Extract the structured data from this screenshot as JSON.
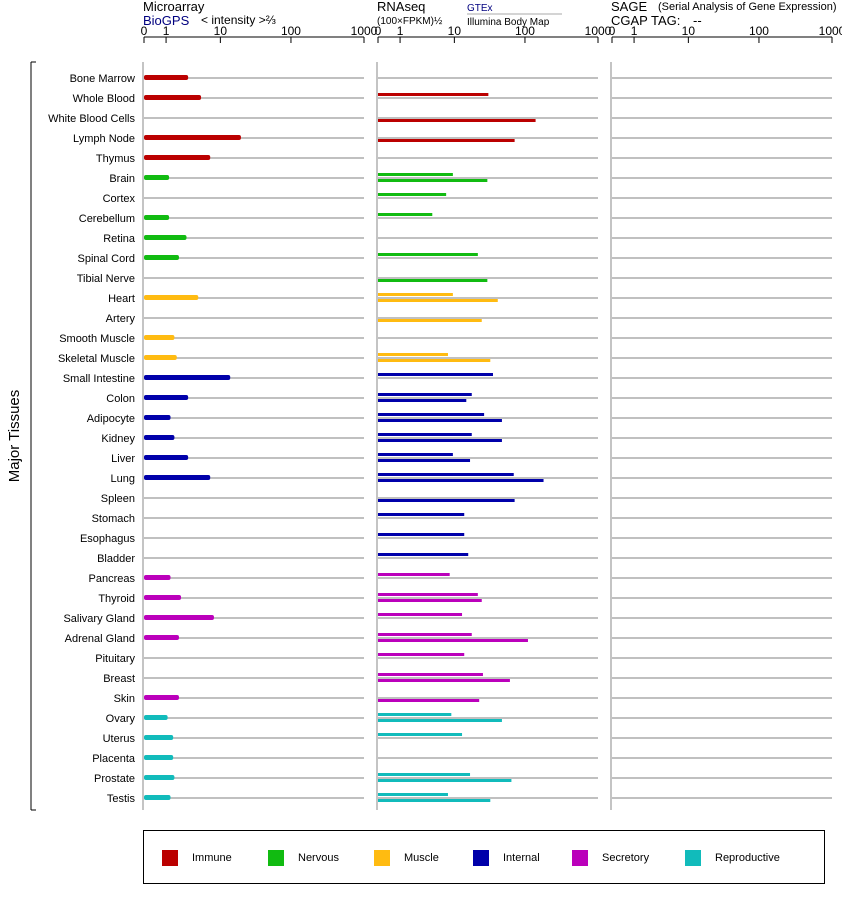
{
  "header": {
    "microarray_title": "Microarray",
    "microarray_source": "BioGPS",
    "microarray_unit": "< intensity >⅔",
    "rnaseq_title": "RNAseq",
    "rnaseq_unit": "(100×FPKM)½",
    "rnaseq_source1": "GTEx",
    "rnaseq_source2": "Illumina Body Map",
    "sage_title": "SAGE",
    "sage_subtitle": "(Serial Analysis of Gene Expression)",
    "sage_tag_label": "CGAP TAG:",
    "sage_tag_value": "--"
  },
  "colors": {
    "Immune": "#bb0000",
    "Nervous": "#11bb11",
    "Muscle": "#ffbb11",
    "Internal": "#0000aa",
    "Secretory": "#bb00bb",
    "Reproductive": "#11bbbb"
  },
  "chart_data": {
    "type": "bar",
    "ylabel": "Major Tissues",
    "axis_ticks": [
      "0",
      "1",
      "10",
      "100",
      "1000"
    ],
    "xlim": [
      0,
      1000
    ],
    "grid": true,
    "legend": [
      "Immune",
      "Nervous",
      "Muscle",
      "Internal",
      "Secretory",
      "Reproductive"
    ],
    "legend_position": "bottom",
    "categories": [
      "Bone Marrow",
      "Whole Blood",
      "White Blood Cells",
      "Lymph Node",
      "Thymus",
      "Brain",
      "Cortex",
      "Cerebellum",
      "Retina",
      "Spinal Cord",
      "Tibial Nerve",
      "Heart",
      "Artery",
      "Smooth Muscle",
      "Skeletal Muscle",
      "Small Intestine",
      "Colon",
      "Adipocyte",
      "Kidney",
      "Liver",
      "Lung",
      "Spleen",
      "Stomach",
      "Esophagus",
      "Bladder",
      "Pancreas",
      "Thyroid",
      "Salivary Gland",
      "Adrenal Gland",
      "Pituitary",
      "Breast",
      "Skin",
      "Ovary",
      "Uterus",
      "Placenta",
      "Prostate",
      "Testis"
    ],
    "groups": [
      "Immune",
      "Immune",
      "Immune",
      "Immune",
      "Immune",
      "Nervous",
      "Nervous",
      "Nervous",
      "Nervous",
      "Nervous",
      "Nervous",
      "Muscle",
      "Muscle",
      "Muscle",
      "Muscle",
      "Internal",
      "Internal",
      "Internal",
      "Internal",
      "Internal",
      "Internal",
      "Internal",
      "Internal",
      "Internal",
      "Internal",
      "Secretory",
      "Secretory",
      "Secretory",
      "Secretory",
      "Secretory",
      "Secretory",
      "Secretory",
      "Reproductive",
      "Reproductive",
      "Reproductive",
      "Reproductive",
      "Reproductive"
    ],
    "series": [
      {
        "name": "Microarray",
        "values": [
          3,
          5,
          0,
          20,
          7,
          1.2,
          0,
          1.2,
          2.8,
          2,
          0,
          4.5,
          0,
          1.6,
          1.8,
          14,
          3,
          1.3,
          1.6,
          3,
          7,
          0,
          0,
          0,
          0,
          1.3,
          2.2,
          8,
          2,
          0,
          0,
          2,
          1.1,
          1.5,
          1.5,
          1.6,
          1.3
        ]
      },
      {
        "name": "GTEx",
        "values": [
          0,
          31,
          0,
          0,
          0,
          9.5,
          7.5,
          4.5,
          0,
          22,
          0,
          9.5,
          0,
          0,
          8,
          36,
          18,
          27,
          18,
          9.5,
          70,
          0,
          14,
          14,
          16,
          8.5,
          22,
          13,
          18,
          14,
          26,
          0,
          9,
          13,
          0,
          17,
          8
        ]
      },
      {
        "name": "Illumina Body Map",
        "values": [
          0,
          0,
          140,
          72,
          0,
          30,
          0,
          0,
          0,
          0,
          30,
          42,
          25,
          0,
          33,
          0,
          15,
          48,
          48,
          17,
          180,
          72,
          0,
          0,
          0,
          0,
          25,
          0,
          110,
          0,
          62,
          23,
          48,
          0,
          0,
          65,
          33
        ]
      },
      {
        "name": "SAGE",
        "values": [
          0,
          0,
          0,
          0,
          0,
          0,
          0,
          0,
          0,
          0,
          0,
          0,
          0,
          0,
          0,
          0,
          0,
          0,
          0,
          0,
          0,
          0,
          0,
          0,
          0,
          0,
          0,
          0,
          0,
          0,
          0,
          0,
          0,
          0,
          0,
          0,
          0
        ]
      }
    ]
  }
}
